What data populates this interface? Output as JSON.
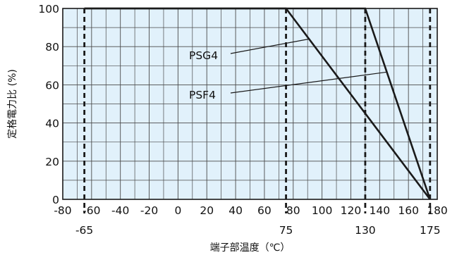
{
  "chart_data": {
    "type": "line",
    "xlabel": "端子部温度（℃）",
    "ylabel": "定格電力比 (%)",
    "xlim": [
      -80,
      180
    ],
    "ylim": [
      0,
      100
    ],
    "grid": true,
    "x_ticks": [
      "-80",
      "-60",
      "-40",
      "-20",
      "0",
      "20",
      "40",
      "60",
      "80",
      "100",
      "120",
      "140",
      "160",
      "180"
    ],
    "y_ticks": [
      "0",
      "20",
      "40",
      "60",
      "80",
      "100"
    ],
    "reference_lines": [
      {
        "x": -65,
        "label": "-65"
      },
      {
        "x": 75,
        "label": "75"
      },
      {
        "x": 130,
        "label": "130"
      },
      {
        "x": 175,
        "label": "175"
      }
    ],
    "series": [
      {
        "name": "PSG4",
        "points": [
          [
            -65,
            100
          ],
          [
            75,
            100
          ],
          [
            175,
            0
          ]
        ]
      },
      {
        "name": "PSF4",
        "points": [
          [
            -65,
            100
          ],
          [
            130,
            100
          ],
          [
            175,
            0
          ]
        ]
      }
    ]
  },
  "colors": {
    "plot_background": "#e1f1fb",
    "grid": "#4a4a4a",
    "series_line": "#1a1a1a",
    "text": "#111111"
  }
}
